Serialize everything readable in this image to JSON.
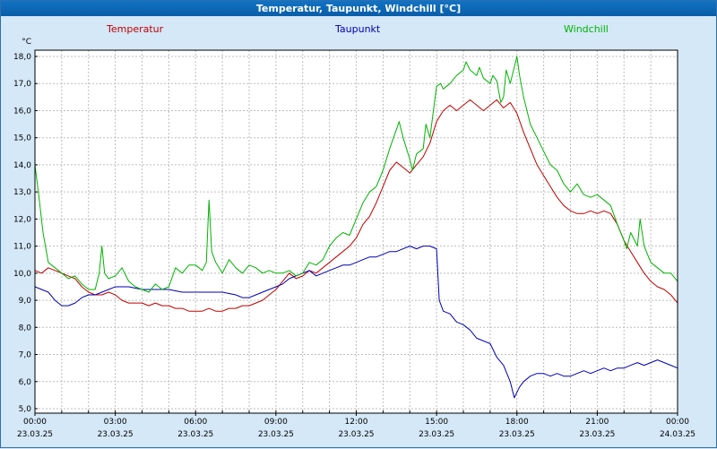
{
  "title_bar": {
    "title": "Temperatur, Taupunkt, Windchill [°C]"
  },
  "colors": {
    "background": "#d4e8f8",
    "titlebar": "#0a5da8",
    "titlebar_hi": "#1273c4",
    "titlebar_text": "#ffffff",
    "frame_border": "#2f6fae",
    "axis_text": "#000000"
  },
  "chart_data": {
    "type": "line",
    "title": "Temperatur, Taupunkt, Windchill [°C]",
    "ylabel": "°C",
    "ylim": [
      5.0,
      18.0
    ],
    "ytick_step": 1.0,
    "xlim_hours": [
      0,
      24
    ],
    "grid": "dashed, hourly vertical, 1.0°C horizontal",
    "legend_position": "top",
    "colors": {
      "plot_bg": "#ffffff",
      "grid": "#bdbdbd",
      "plot_border": "#000000"
    },
    "xticks": [
      {
        "hour": 0,
        "time": "00:00",
        "date": "23.03.25"
      },
      {
        "hour": 3,
        "time": "03:00",
        "date": "23.03.25"
      },
      {
        "hour": 6,
        "time": "06:00",
        "date": "23.03.25"
      },
      {
        "hour": 9,
        "time": "09:00",
        "date": "23.03.25"
      },
      {
        "hour": 12,
        "time": "12:00",
        "date": "23.03.25"
      },
      {
        "hour": 15,
        "time": "15:00",
        "date": "23.03.25"
      },
      {
        "hour": 18,
        "time": "18:00",
        "date": "23.03.25"
      },
      {
        "hour": 21,
        "time": "21:00",
        "date": "23.03.25"
      },
      {
        "hour": 24,
        "time": "00:00",
        "date": "24.03.25"
      }
    ],
    "series": [
      {
        "name": "Temperatur",
        "color": "#c00000",
        "points": [
          [
            0,
            10.1
          ],
          [
            0.25,
            10.0
          ],
          [
            0.5,
            10.2
          ],
          [
            0.75,
            10.1
          ],
          [
            1,
            10.0
          ],
          [
            1.25,
            9.9
          ],
          [
            1.5,
            9.8
          ],
          [
            1.75,
            9.5
          ],
          [
            2,
            9.3
          ],
          [
            2.25,
            9.2
          ],
          [
            2.5,
            9.2
          ],
          [
            2.75,
            9.3
          ],
          [
            3,
            9.2
          ],
          [
            3.25,
            9.0
          ],
          [
            3.5,
            8.9
          ],
          [
            3.75,
            8.9
          ],
          [
            4,
            8.9
          ],
          [
            4.25,
            8.8
          ],
          [
            4.5,
            8.9
          ],
          [
            4.75,
            8.8
          ],
          [
            5,
            8.8
          ],
          [
            5.25,
            8.7
          ],
          [
            5.5,
            8.7
          ],
          [
            5.75,
            8.6
          ],
          [
            6,
            8.6
          ],
          [
            6.25,
            8.6
          ],
          [
            6.5,
            8.7
          ],
          [
            6.75,
            8.6
          ],
          [
            7,
            8.6
          ],
          [
            7.25,
            8.7
          ],
          [
            7.5,
            8.7
          ],
          [
            7.75,
            8.8
          ],
          [
            8,
            8.8
          ],
          [
            8.25,
            8.9
          ],
          [
            8.5,
            9.0
          ],
          [
            8.75,
            9.2
          ],
          [
            9,
            9.4
          ],
          [
            9.25,
            9.7
          ],
          [
            9.5,
            10.0
          ],
          [
            9.75,
            9.8
          ],
          [
            10,
            9.9
          ],
          [
            10.25,
            10.1
          ],
          [
            10.5,
            10.0
          ],
          [
            10.75,
            10.2
          ],
          [
            11,
            10.4
          ],
          [
            11.25,
            10.6
          ],
          [
            11.5,
            10.8
          ],
          [
            11.75,
            11.0
          ],
          [
            12,
            11.3
          ],
          [
            12.25,
            11.8
          ],
          [
            12.5,
            12.1
          ],
          [
            12.75,
            12.6
          ],
          [
            13,
            13.2
          ],
          [
            13.25,
            13.8
          ],
          [
            13.5,
            14.1
          ],
          [
            13.75,
            13.9
          ],
          [
            14,
            13.7
          ],
          [
            14.25,
            14.0
          ],
          [
            14.5,
            14.3
          ],
          [
            14.75,
            14.8
          ],
          [
            15,
            15.6
          ],
          [
            15.25,
            16.0
          ],
          [
            15.5,
            16.2
          ],
          [
            15.75,
            16.0
          ],
          [
            16,
            16.2
          ],
          [
            16.25,
            16.4
          ],
          [
            16.5,
            16.2
          ],
          [
            16.75,
            16.0
          ],
          [
            17,
            16.2
          ],
          [
            17.25,
            16.4
          ],
          [
            17.5,
            16.1
          ],
          [
            17.75,
            16.3
          ],
          [
            18,
            15.9
          ],
          [
            18.25,
            15.2
          ],
          [
            18.5,
            14.6
          ],
          [
            18.75,
            14.0
          ],
          [
            19,
            13.6
          ],
          [
            19.25,
            13.2
          ],
          [
            19.5,
            12.8
          ],
          [
            19.75,
            12.5
          ],
          [
            20,
            12.3
          ],
          [
            20.25,
            12.2
          ],
          [
            20.5,
            12.2
          ],
          [
            20.75,
            12.3
          ],
          [
            21,
            12.2
          ],
          [
            21.25,
            12.3
          ],
          [
            21.5,
            12.2
          ],
          [
            21.75,
            11.8
          ],
          [
            22,
            11.2
          ],
          [
            22.25,
            10.8
          ],
          [
            22.5,
            10.4
          ],
          [
            22.75,
            10.0
          ],
          [
            23,
            9.7
          ],
          [
            23.25,
            9.5
          ],
          [
            23.5,
            9.4
          ],
          [
            23.75,
            9.2
          ],
          [
            24,
            8.9
          ]
        ]
      },
      {
        "name": "Taupunkt",
        "color": "#0000b4",
        "points": [
          [
            0,
            9.5
          ],
          [
            0.25,
            9.4
          ],
          [
            0.5,
            9.3
          ],
          [
            0.75,
            9.0
          ],
          [
            1,
            8.8
          ],
          [
            1.25,
            8.8
          ],
          [
            1.5,
            8.9
          ],
          [
            1.75,
            9.1
          ],
          [
            2,
            9.2
          ],
          [
            2.25,
            9.2
          ],
          [
            2.5,
            9.3
          ],
          [
            2.75,
            9.4
          ],
          [
            3,
            9.5
          ],
          [
            3.5,
            9.5
          ],
          [
            4,
            9.4
          ],
          [
            4.5,
            9.4
          ],
          [
            5,
            9.4
          ],
          [
            5.5,
            9.3
          ],
          [
            6,
            9.3
          ],
          [
            6.5,
            9.3
          ],
          [
            7,
            9.3
          ],
          [
            7.5,
            9.2
          ],
          [
            7.75,
            9.1
          ],
          [
            8,
            9.1
          ],
          [
            8.25,
            9.2
          ],
          [
            8.5,
            9.3
          ],
          [
            8.75,
            9.4
          ],
          [
            9,
            9.5
          ],
          [
            9.25,
            9.6
          ],
          [
            9.5,
            9.8
          ],
          [
            9.75,
            9.9
          ],
          [
            10,
            10.0
          ],
          [
            10.25,
            10.1
          ],
          [
            10.5,
            9.9
          ],
          [
            10.75,
            10.0
          ],
          [
            11,
            10.1
          ],
          [
            11.25,
            10.2
          ],
          [
            11.5,
            10.3
          ],
          [
            11.75,
            10.3
          ],
          [
            12,
            10.4
          ],
          [
            12.25,
            10.5
          ],
          [
            12.5,
            10.6
          ],
          [
            12.75,
            10.6
          ],
          [
            13,
            10.7
          ],
          [
            13.25,
            10.8
          ],
          [
            13.5,
            10.8
          ],
          [
            13.75,
            10.9
          ],
          [
            14,
            11.0
          ],
          [
            14.25,
            10.9
          ],
          [
            14.5,
            11.0
          ],
          [
            14.75,
            11.0
          ],
          [
            15,
            10.9
          ],
          [
            15.1,
            9.0
          ],
          [
            15.25,
            8.6
          ],
          [
            15.5,
            8.5
          ],
          [
            15.75,
            8.2
          ],
          [
            16,
            8.1
          ],
          [
            16.25,
            7.9
          ],
          [
            16.5,
            7.6
          ],
          [
            16.75,
            7.5
          ],
          [
            17,
            7.4
          ],
          [
            17.25,
            6.9
          ],
          [
            17.5,
            6.6
          ],
          [
            17.75,
            6.0
          ],
          [
            17.9,
            5.4
          ],
          [
            18.1,
            5.8
          ],
          [
            18.25,
            6.0
          ],
          [
            18.5,
            6.2
          ],
          [
            18.75,
            6.3
          ],
          [
            19,
            6.3
          ],
          [
            19.25,
            6.2
          ],
          [
            19.5,
            6.3
          ],
          [
            19.75,
            6.2
          ],
          [
            20,
            6.2
          ],
          [
            20.25,
            6.3
          ],
          [
            20.5,
            6.4
          ],
          [
            20.75,
            6.3
          ],
          [
            21,
            6.4
          ],
          [
            21.25,
            6.5
          ],
          [
            21.5,
            6.4
          ],
          [
            21.75,
            6.5
          ],
          [
            22,
            6.5
          ],
          [
            22.25,
            6.6
          ],
          [
            22.5,
            6.7
          ],
          [
            22.75,
            6.6
          ],
          [
            23,
            6.7
          ],
          [
            23.25,
            6.8
          ],
          [
            23.5,
            6.7
          ],
          [
            23.75,
            6.6
          ],
          [
            24,
            6.5
          ]
        ]
      },
      {
        "name": "Windchill",
        "color": "#00b400",
        "points": [
          [
            0,
            14.0
          ],
          [
            0.15,
            12.8
          ],
          [
            0.3,
            11.5
          ],
          [
            0.5,
            10.4
          ],
          [
            0.75,
            10.2
          ],
          [
            1,
            10.0
          ],
          [
            1.25,
            9.8
          ],
          [
            1.5,
            9.9
          ],
          [
            1.75,
            9.6
          ],
          [
            2,
            9.4
          ],
          [
            2.25,
            9.4
          ],
          [
            2.4,
            10.0
          ],
          [
            2.5,
            11.0
          ],
          [
            2.6,
            10.0
          ],
          [
            2.75,
            9.8
          ],
          [
            3,
            9.9
          ],
          [
            3.25,
            10.2
          ],
          [
            3.5,
            9.7
          ],
          [
            3.75,
            9.5
          ],
          [
            4,
            9.4
          ],
          [
            4.25,
            9.3
          ],
          [
            4.5,
            9.6
          ],
          [
            4.75,
            9.4
          ],
          [
            5,
            9.5
          ],
          [
            5.25,
            10.2
          ],
          [
            5.5,
            10.0
          ],
          [
            5.75,
            10.3
          ],
          [
            6,
            10.3
          ],
          [
            6.25,
            10.1
          ],
          [
            6.4,
            10.4
          ],
          [
            6.5,
            12.7
          ],
          [
            6.6,
            10.8
          ],
          [
            6.75,
            10.4
          ],
          [
            7,
            10.0
          ],
          [
            7.25,
            10.5
          ],
          [
            7.5,
            10.2
          ],
          [
            7.75,
            10.0
          ],
          [
            8,
            10.3
          ],
          [
            8.25,
            10.2
          ],
          [
            8.5,
            10.0
          ],
          [
            8.75,
            10.1
          ],
          [
            9,
            10.0
          ],
          [
            9.25,
            10.0
          ],
          [
            9.5,
            10.1
          ],
          [
            9.75,
            9.9
          ],
          [
            10,
            10.0
          ],
          [
            10.25,
            10.4
          ],
          [
            10.5,
            10.3
          ],
          [
            10.75,
            10.5
          ],
          [
            11,
            11.0
          ],
          [
            11.25,
            11.3
          ],
          [
            11.5,
            11.5
          ],
          [
            11.75,
            11.4
          ],
          [
            12,
            12.0
          ],
          [
            12.25,
            12.6
          ],
          [
            12.5,
            13.0
          ],
          [
            12.75,
            13.2
          ],
          [
            13,
            13.8
          ],
          [
            13.25,
            14.6
          ],
          [
            13.5,
            15.3
          ],
          [
            13.6,
            15.6
          ],
          [
            13.75,
            15.0
          ],
          [
            14,
            14.2
          ],
          [
            14.1,
            13.8
          ],
          [
            14.25,
            14.4
          ],
          [
            14.5,
            14.6
          ],
          [
            14.6,
            15.5
          ],
          [
            14.75,
            15.0
          ],
          [
            15,
            16.9
          ],
          [
            15.15,
            17.0
          ],
          [
            15.25,
            16.8
          ],
          [
            15.5,
            17.0
          ],
          [
            15.75,
            17.3
          ],
          [
            16,
            17.5
          ],
          [
            16.1,
            17.8
          ],
          [
            16.25,
            17.5
          ],
          [
            16.5,
            17.3
          ],
          [
            16.6,
            17.6
          ],
          [
            16.75,
            17.2
          ],
          [
            17,
            17.0
          ],
          [
            17.1,
            17.3
          ],
          [
            17.25,
            17.1
          ],
          [
            17.4,
            16.3
          ],
          [
            17.5,
            16.5
          ],
          [
            17.6,
            17.5
          ],
          [
            17.75,
            17.0
          ],
          [
            18,
            18.0
          ],
          [
            18.1,
            17.3
          ],
          [
            18.25,
            16.5
          ],
          [
            18.5,
            15.5
          ],
          [
            18.75,
            15.0
          ],
          [
            19,
            14.5
          ],
          [
            19.25,
            14.0
          ],
          [
            19.5,
            13.8
          ],
          [
            19.75,
            13.3
          ],
          [
            20,
            13.0
          ],
          [
            20.25,
            13.3
          ],
          [
            20.5,
            12.9
          ],
          [
            20.75,
            12.8
          ],
          [
            21,
            12.9
          ],
          [
            21.25,
            12.7
          ],
          [
            21.5,
            12.5
          ],
          [
            21.75,
            11.8
          ],
          [
            22,
            11.2
          ],
          [
            22.1,
            10.9
          ],
          [
            22.25,
            11.5
          ],
          [
            22.5,
            11.0
          ],
          [
            22.6,
            12.0
          ],
          [
            22.75,
            11.0
          ],
          [
            23,
            10.4
          ],
          [
            23.25,
            10.2
          ],
          [
            23.5,
            10.0
          ],
          [
            23.75,
            10.0
          ],
          [
            24,
            9.7
          ]
        ]
      }
    ]
  }
}
